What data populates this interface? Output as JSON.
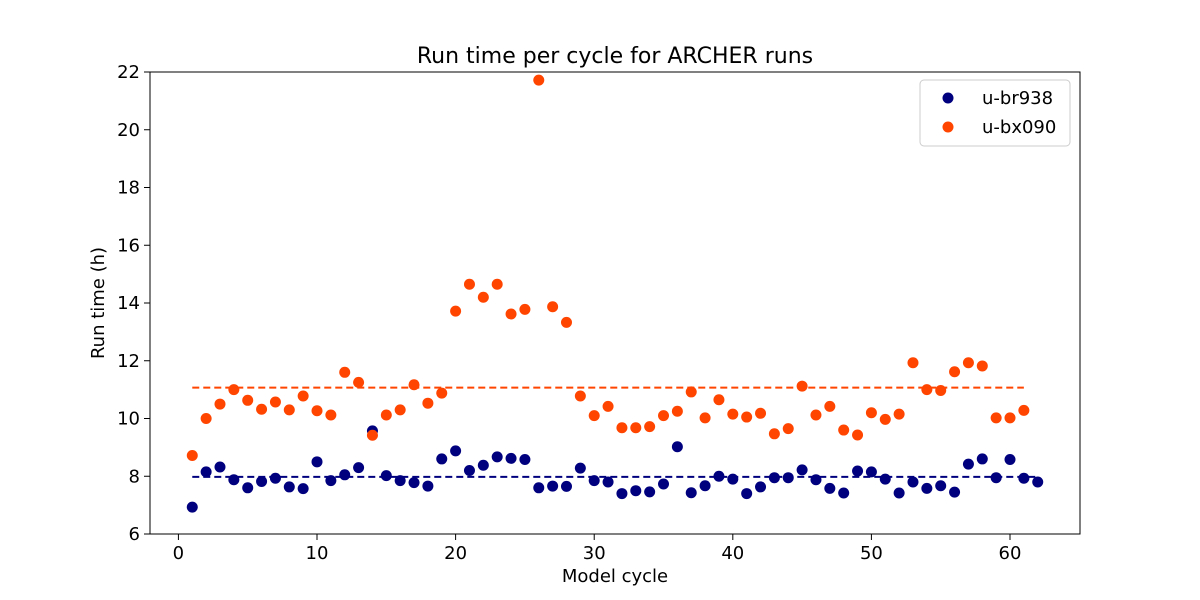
{
  "chart_data": {
    "type": "scatter",
    "title": "Run time per cycle for ARCHER runs",
    "xlabel": "Model cycle",
    "ylabel": "Run time (h)",
    "xlim": [
      -2.05,
      65.05
    ],
    "ylim": [
      6,
      22
    ],
    "xticks": [
      0,
      10,
      20,
      30,
      40,
      50,
      60
    ],
    "yticks": [
      6,
      8,
      10,
      12,
      14,
      16,
      18,
      20,
      22
    ],
    "grid": false,
    "legend_position": "top-right",
    "series": [
      {
        "name": "u-br938",
        "color": "#00007f",
        "x": [
          1,
          2,
          3,
          4,
          5,
          6,
          7,
          8,
          9,
          10,
          11,
          12,
          13,
          14,
          15,
          16,
          17,
          18,
          19,
          20,
          21,
          22,
          23,
          24,
          25,
          26,
          27,
          28,
          29,
          30,
          31,
          32,
          33,
          34,
          35,
          36,
          37,
          38,
          39,
          40,
          41,
          42,
          43,
          44,
          45,
          46,
          47,
          48,
          49,
          50,
          51,
          52,
          53,
          54,
          55,
          56,
          57,
          58,
          59,
          60,
          61,
          62
        ],
        "y": [
          6.93,
          8.15,
          8.32,
          7.88,
          7.6,
          7.82,
          7.93,
          7.63,
          7.57,
          8.5,
          7.85,
          8.05,
          8.3,
          9.57,
          8.02,
          7.85,
          7.78,
          7.66,
          8.6,
          8.88,
          8.2,
          8.38,
          8.67,
          8.62,
          8.58,
          7.6,
          7.66,
          7.65,
          8.28,
          7.85,
          7.8,
          7.4,
          7.5,
          7.46,
          7.73,
          9.02,
          7.43,
          7.67,
          8.0,
          7.9,
          7.4,
          7.63,
          7.95,
          7.95,
          8.22,
          7.88,
          7.58,
          7.42,
          8.18,
          8.15,
          7.9,
          7.42,
          7.8,
          7.58,
          7.67,
          7.45,
          8.42,
          8.6,
          7.95,
          8.58,
          7.93,
          7.8
        ],
        "mean": 7.98,
        "mean_x_range": [
          1,
          62
        ]
      },
      {
        "name": "u-bx090",
        "color": "#ff4500",
        "x": [
          1,
          2,
          3,
          4,
          5,
          6,
          7,
          8,
          9,
          10,
          11,
          12,
          13,
          14,
          15,
          16,
          17,
          18,
          19,
          20,
          21,
          22,
          23,
          24,
          25,
          26,
          27,
          28,
          29,
          30,
          31,
          32,
          33,
          34,
          35,
          36,
          37,
          38,
          39,
          40,
          41,
          42,
          43,
          44,
          45,
          46,
          47,
          48,
          49,
          50,
          51,
          52,
          53,
          54,
          55,
          56,
          57,
          58,
          59,
          60,
          61
        ],
        "y": [
          8.72,
          10.0,
          10.5,
          11.0,
          10.63,
          10.32,
          10.57,
          10.3,
          10.78,
          10.27,
          10.12,
          11.6,
          11.25,
          9.42,
          10.12,
          10.3,
          11.17,
          10.53,
          10.88,
          13.72,
          14.65,
          14.2,
          14.65,
          13.62,
          13.78,
          21.72,
          13.87,
          13.33,
          10.78,
          10.1,
          10.42,
          9.68,
          9.68,
          9.72,
          10.1,
          10.25,
          10.92,
          10.02,
          10.65,
          10.15,
          10.05,
          10.18,
          9.47,
          9.65,
          11.12,
          10.12,
          10.42,
          9.6,
          9.43,
          10.2,
          9.97,
          10.15,
          11.93,
          11.0,
          10.97,
          11.62,
          11.93,
          11.82,
          10.02,
          10.02,
          10.28
        ],
        "mean": 11.07,
        "mean_x_range": [
          1,
          61
        ]
      }
    ]
  }
}
